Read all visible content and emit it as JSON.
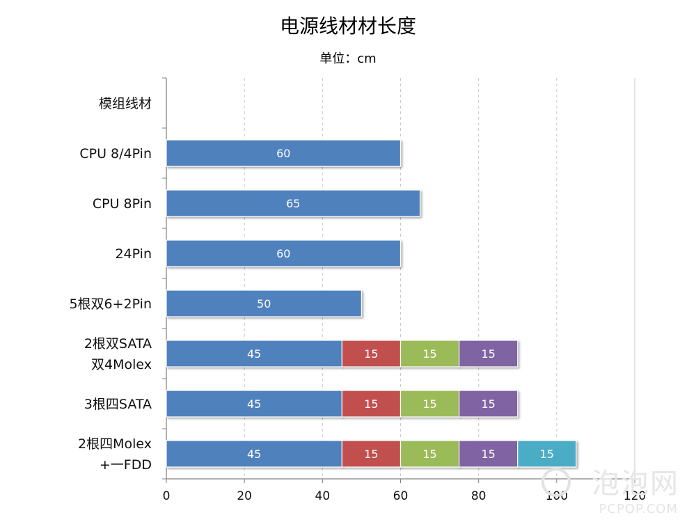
{
  "chart_data": {
    "type": "bar",
    "orientation": "horizontal",
    "stacked": true,
    "title": "电源线材材长度",
    "subtitle": "单位：cm",
    "xlim": [
      0,
      120
    ],
    "x_ticks": [
      "0",
      "20",
      "40",
      "60",
      "80",
      "100",
      "120"
    ],
    "grid": true,
    "categories": [
      [
        "模组线材"
      ],
      [
        "CPU 8/4Pin"
      ],
      [
        "CPU 8Pin"
      ],
      [
        "24Pin"
      ],
      [
        "5根双6+2Pin"
      ],
      [
        "2根双SATA",
        "双4Molex"
      ],
      [
        "3根四SATA"
      ],
      [
        "2根四Molex",
        "+一FDD"
      ]
    ],
    "series": [
      {
        "color": "#4f81bd",
        "values": [
          null,
          60,
          65,
          60,
          50,
          45,
          45,
          45
        ]
      },
      {
        "color": "#c0504d",
        "values": [
          null,
          null,
          null,
          null,
          null,
          15,
          15,
          15
        ]
      },
      {
        "color": "#9bbb59",
        "values": [
          null,
          null,
          null,
          null,
          null,
          15,
          15,
          15
        ]
      },
      {
        "color": "#8064a2",
        "values": [
          null,
          null,
          null,
          null,
          null,
          15,
          15,
          15
        ]
      },
      {
        "color": "#4bacc6",
        "values": [
          null,
          null,
          null,
          null,
          null,
          null,
          null,
          15
        ]
      }
    ]
  },
  "watermark": {
    "text": "泡泡网",
    "sub": "PCPOP.COM"
  }
}
